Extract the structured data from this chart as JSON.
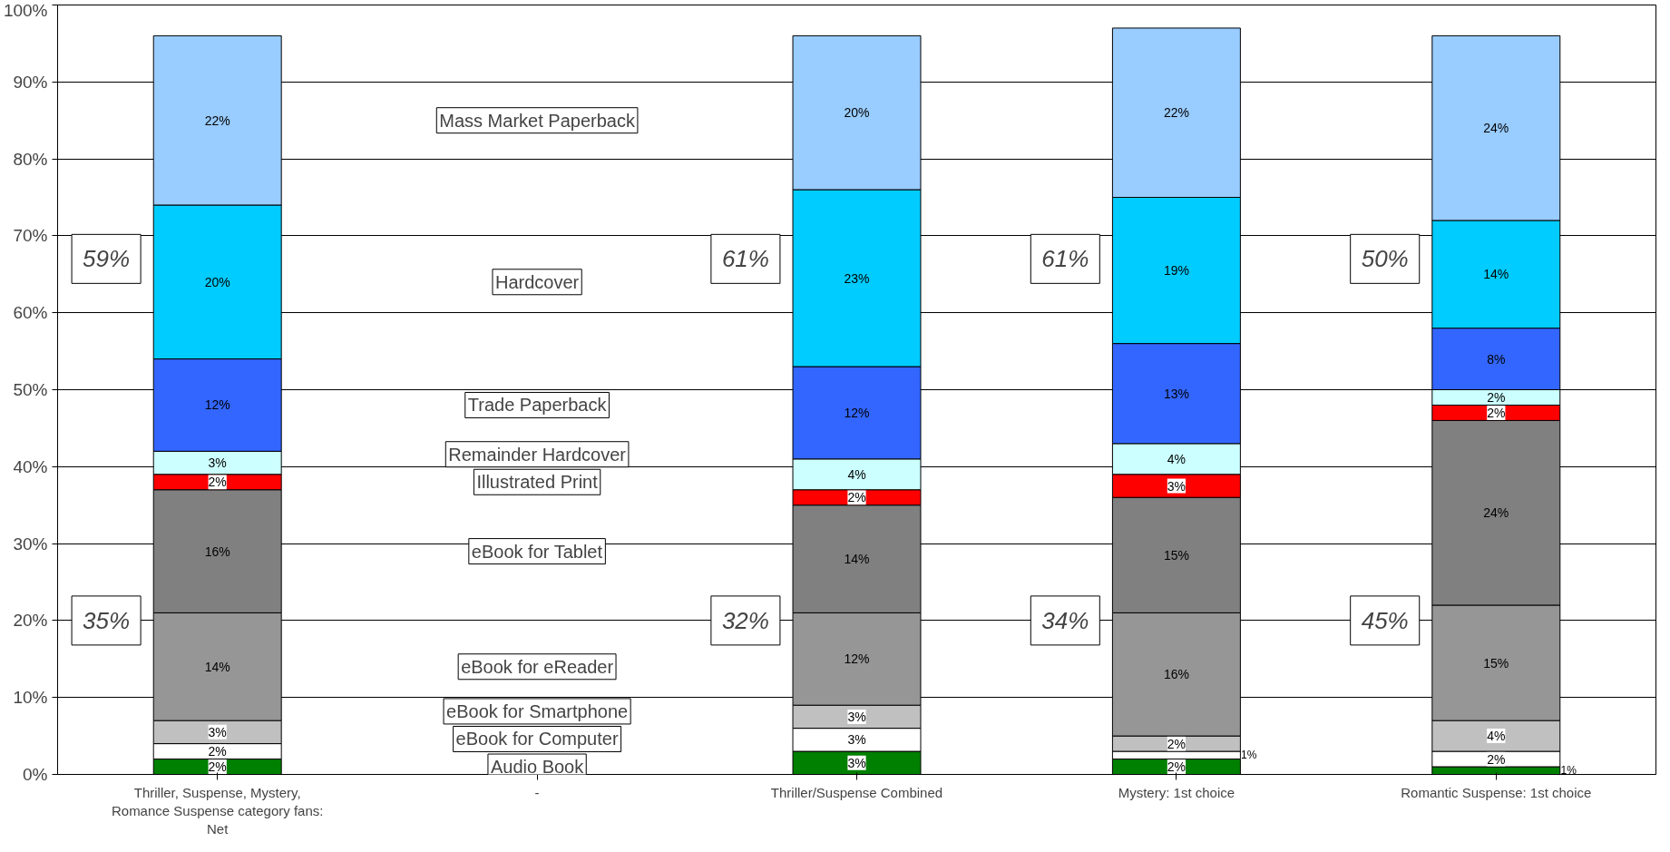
{
  "chart_data": {
    "type": "bar",
    "stacked": true,
    "grid": "y",
    "categories": [
      "Thriller, Suspense, Mystery,\nRomance Suspense category fans:\nNet",
      "-",
      "Thriller/Suspense Combined",
      "Mystery: 1st choice",
      "Romantic Suspense: 1st choice"
    ],
    "ylim": [
      0,
      100
    ],
    "yticks": [
      {
        "value": 0,
        "label": "0%"
      },
      {
        "value": 10,
        "label": "10%"
      },
      {
        "value": 20,
        "label": "20%"
      },
      {
        "value": 30,
        "label": "30%"
      },
      {
        "value": 40,
        "label": "40%"
      },
      {
        "value": 50,
        "label": "50%"
      },
      {
        "value": 60,
        "label": "60%"
      },
      {
        "value": 70,
        "label": "70%"
      },
      {
        "value": 80,
        "label": "80%"
      },
      {
        "value": 90,
        "label": "90%"
      },
      {
        "value": 100,
        "label": "100%"
      }
    ],
    "series": [
      {
        "name": "Audio Book",
        "color": "#008000",
        "values": [
          2,
          null,
          3,
          2,
          1
        ],
        "value_labels": [
          "2%",
          null,
          "3%",
          "2%",
          "1%"
        ]
      },
      {
        "name": "eBook for Computer",
        "color": "#ffffff",
        "values": [
          2,
          null,
          3,
          1,
          2
        ],
        "value_labels": [
          "2%",
          null,
          "3%",
          "1%",
          "2%"
        ]
      },
      {
        "name": "eBook for Smartphone",
        "color": "#c0c0c0",
        "values": [
          3,
          null,
          3,
          2,
          4
        ],
        "value_labels": [
          "3%",
          null,
          "3%",
          "2%",
          "4%"
        ]
      },
      {
        "name": "eBook for eReader",
        "color": "#969696",
        "values": [
          14,
          null,
          12,
          16,
          15
        ],
        "value_labels": [
          "14%",
          null,
          "12%",
          "16%",
          "15%"
        ]
      },
      {
        "name": "eBook for Tablet",
        "color": "#808080",
        "values": [
          16,
          null,
          14,
          15,
          24
        ],
        "value_labels": [
          "16%",
          null,
          "14%",
          "15%",
          "24%"
        ]
      },
      {
        "name": "Illustrated Print",
        "color": "#ff0000",
        "values": [
          2,
          null,
          2,
          3,
          2
        ],
        "value_labels": [
          "2%",
          null,
          "2%",
          "3%",
          "2%"
        ]
      },
      {
        "name": "Remainder Hardcover",
        "color": "#ccffff",
        "values": [
          3,
          null,
          4,
          4,
          2
        ],
        "value_labels": [
          "3%",
          null,
          "4%",
          "4%",
          "2%"
        ]
      },
      {
        "name": "Trade Paperback",
        "color": "#3366ff",
        "values": [
          12,
          null,
          12,
          13,
          8
        ],
        "value_labels": [
          "12%",
          null,
          "12%",
          "13%",
          "8%"
        ]
      },
      {
        "name": "Hardcover",
        "color": "#00ccff",
        "values": [
          20,
          null,
          23,
          19,
          14
        ],
        "value_labels": [
          "20%",
          null,
          "23%",
          "19%",
          "14%"
        ]
      },
      {
        "name": "Mass Market Paperback",
        "color": "#99ccff",
        "values": [
          22,
          null,
          20,
          22,
          24
        ],
        "value_labels": [
          "22%",
          null,
          "20%",
          "22%",
          "24%"
        ]
      }
    ],
    "annotations": [
      "59%",
      "35%",
      "61%",
      "32%",
      "61%",
      "34%",
      "50%",
      "45%"
    ]
  }
}
